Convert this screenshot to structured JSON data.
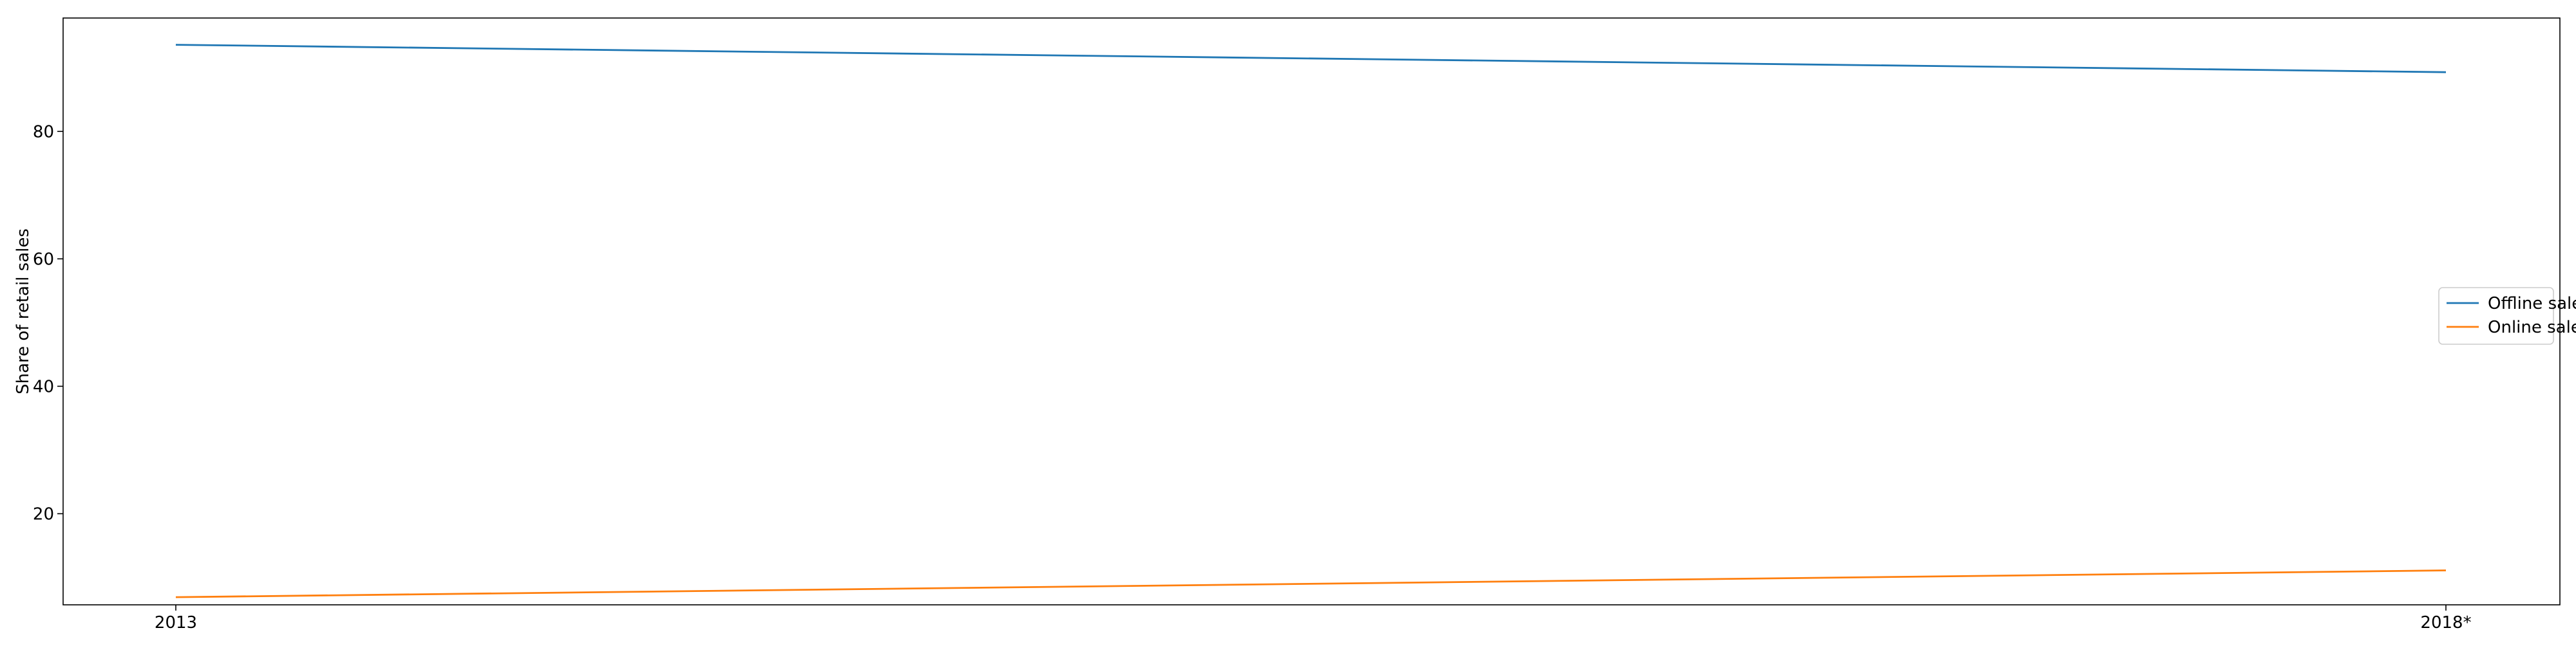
{
  "chart_data": {
    "type": "line",
    "title": "",
    "xlabel": "",
    "ylabel": "Share of retail sales",
    "categories": [
      "2013",
      "2018*"
    ],
    "x_tick_labels": [
      "2013",
      "2018*"
    ],
    "y_ticks": [
      20,
      40,
      60,
      80
    ],
    "ylim": [
      5.7,
      97.8
    ],
    "grid": false,
    "legend_position": "center-right",
    "series": [
      {
        "name": "Offline sales",
        "values": [
          93.6,
          89.3
        ],
        "color": "#1f77b4"
      },
      {
        "name": "Online sales",
        "values": [
          6.9,
          11.1
        ],
        "color": "#ff7f0e"
      }
    ]
  }
}
